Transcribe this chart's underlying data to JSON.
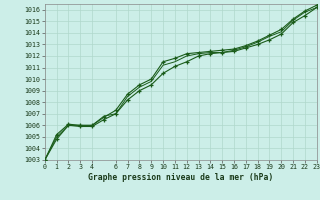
{
  "title": "Graphe pression niveau de la mer (hPa)",
  "bg_color": "#cceee8",
  "grid_color": "#b0d8cc",
  "line_color": "#1a5c1a",
  "ylim": [
    1003,
    1016.5
  ],
  "xlim": [
    0,
    23
  ],
  "yticks": [
    1003,
    1004,
    1005,
    1006,
    1007,
    1008,
    1009,
    1010,
    1011,
    1012,
    1013,
    1014,
    1015,
    1016
  ],
  "xticks": [
    0,
    1,
    2,
    3,
    4,
    6,
    7,
    8,
    9,
    10,
    11,
    12,
    13,
    14,
    15,
    16,
    17,
    18,
    19,
    20,
    21,
    22,
    23
  ],
  "line1_y": [
    1003.0,
    1005.0,
    1006.0,
    1006.0,
    1006.0,
    1006.8,
    1007.0,
    1008.5,
    1009.3,
    1009.8,
    1011.2,
    1011.5,
    1012.0,
    1012.2,
    1012.3,
    1012.3,
    1012.5,
    1012.8,
    1013.2,
    1013.7,
    1014.1,
    1015.1,
    1015.8,
    1016.2
  ],
  "line2_y": [
    1003.0,
    1004.8,
    1006.0,
    1005.9,
    1005.9,
    1006.5,
    1007.0,
    1008.2,
    1009.0,
    1009.5,
    1010.5,
    1011.1,
    1011.5,
    1012.0,
    1012.2,
    1012.3,
    1012.4,
    1012.7,
    1013.0,
    1013.4,
    1013.9,
    1014.9,
    1015.5,
    1016.2
  ],
  "line3_y": [
    1003.0,
    1005.2,
    1006.1,
    1006.0,
    1006.0,
    1006.7,
    1007.3,
    1008.7,
    1009.5,
    1010.0,
    1011.5,
    1011.8,
    1012.2,
    1012.3,
    1012.4,
    1012.5,
    1012.6,
    1012.9,
    1013.3,
    1013.8,
    1014.3,
    1015.2,
    1015.9,
    1016.4
  ]
}
